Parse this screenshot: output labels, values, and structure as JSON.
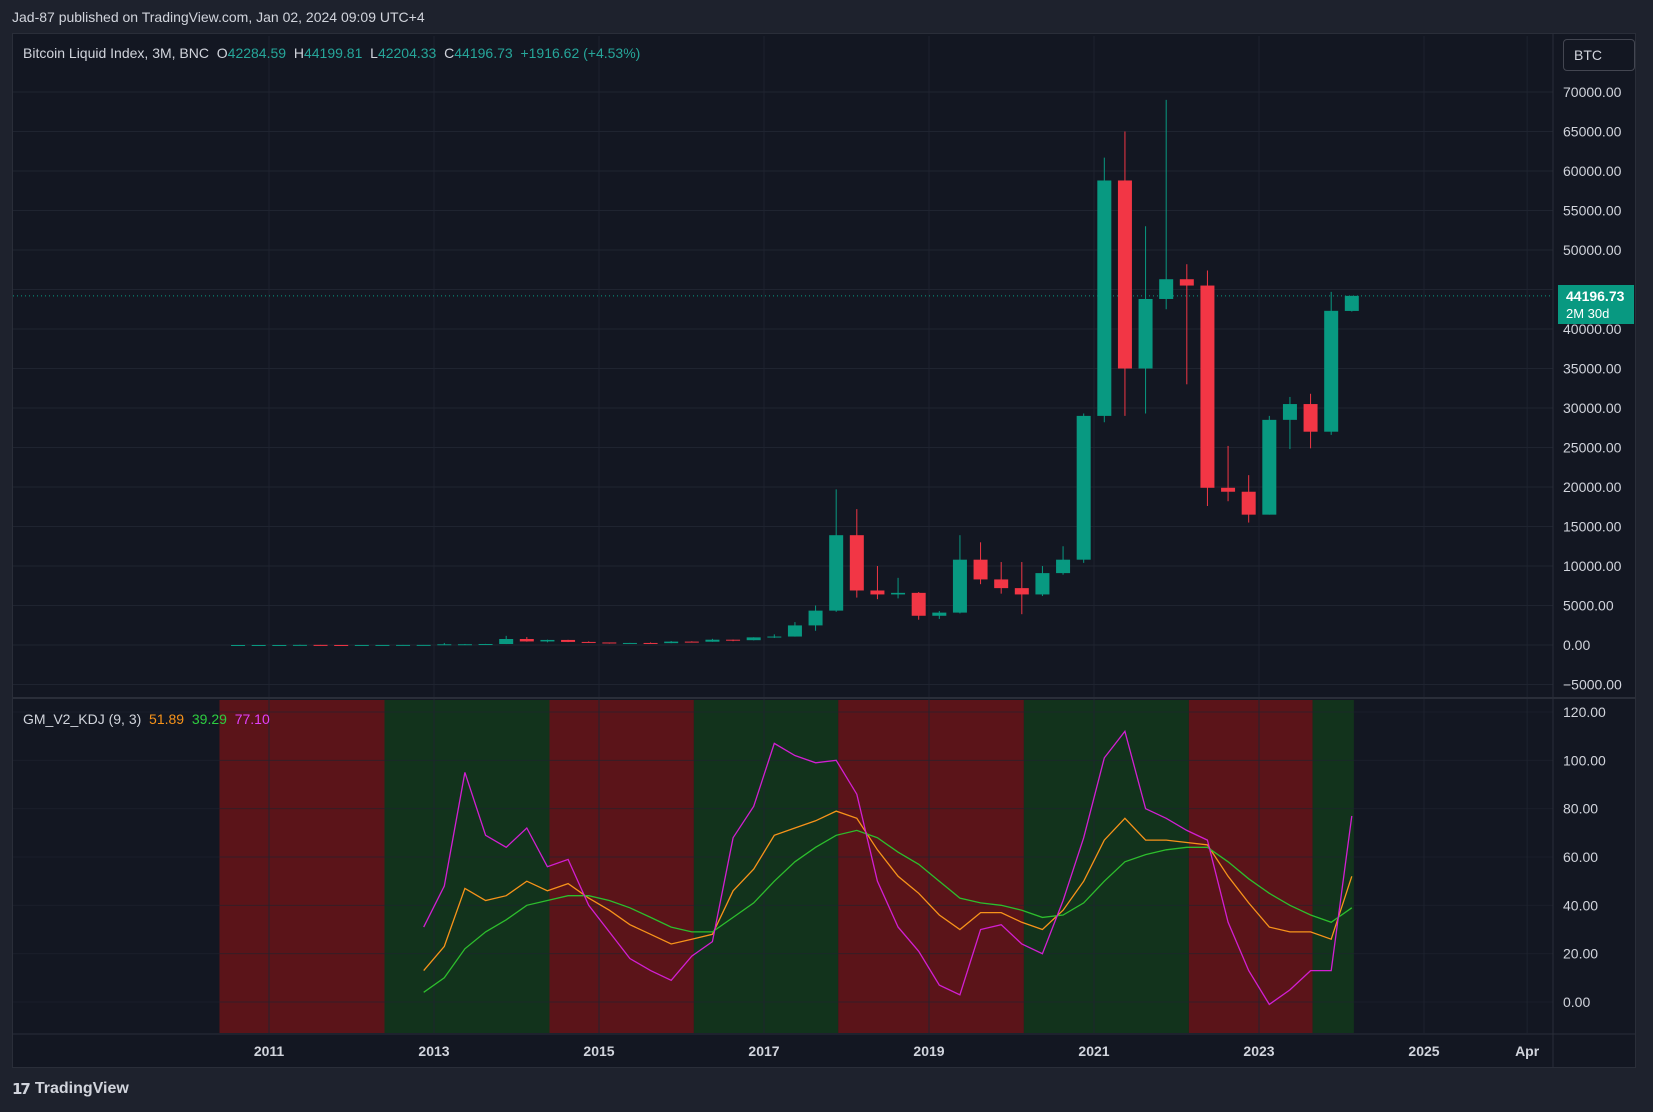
{
  "header": {
    "published": "Jad-87 published on TradingView.com, Jan 02, 2024 09:09 UTC+4"
  },
  "legend": {
    "title": "Bitcoin Liquid Index, 3M, BNC",
    "o_label": "O",
    "o": "42284.59",
    "h_label": "H",
    "h": "44199.81",
    "l_label": "L",
    "l": "42204.33",
    "c_label": "C",
    "c": "44196.73",
    "change": "+1916.62 (+4.53%)"
  },
  "symbol_box": {
    "label": "BTC"
  },
  "price_tag": {
    "price": "44196.73",
    "countdown": "2M 30d"
  },
  "kdj_legend": {
    "name": "GM_V2_KDJ (9, 3)",
    "k": "51.89",
    "d": "39.29",
    "j": "77.10"
  },
  "footer": {
    "brand": "TradingView",
    "logo": "tradingview-logo-icon"
  },
  "colors": {
    "up": "#089981",
    "down": "#f23645",
    "k": "#f7931a",
    "d": "#2dbe2d",
    "j": "#d21fd2",
    "zone_red": "#5b1419",
    "zone_green": "#12331c",
    "bg": "#131722",
    "grid": "#1f2430"
  },
  "chart_data": [
    {
      "type": "candlestick",
      "title": "Bitcoin Liquid Index, 3M, BNC",
      "ylim": [
        -6000,
        72000
      ],
      "y_ticks": [
        -5000,
        0,
        5000,
        10000,
        15000,
        20000,
        25000,
        30000,
        35000,
        40000,
        45000,
        50000,
        55000,
        60000,
        65000,
        70000
      ],
      "y_tick_labels": [
        "−5000.00",
        "0.00",
        "5000.00",
        "10000.00",
        "15000.00",
        "20000.00",
        "25000.00",
        "30000.00",
        "35000.00",
        "40000.00",
        "45000.00",
        "50000.00",
        "55000.00",
        "60000.00",
        "65000.00",
        "70000.00"
      ],
      "x_tick_labels": [
        "2011",
        "2013",
        "2015",
        "2017",
        "2019",
        "2021",
        "2023",
        "2025",
        "Apr"
      ],
      "x_tick_years": [
        2011,
        2013,
        2015,
        2017,
        2019,
        2021,
        2023,
        2025,
        2026.25
      ],
      "grid": true,
      "current_price": 44196.73,
      "candles": [
        {
          "t": 2010.5,
          "o": 0.1,
          "h": 0.4,
          "l": 0.05,
          "c": 0.3
        },
        {
          "t": 2010.75,
          "o": 0.3,
          "h": 0.5,
          "l": 0.2,
          "c": 0.3
        },
        {
          "t": 2011.0,
          "o": 0.3,
          "h": 1,
          "l": 0.3,
          "c": 0.8
        },
        {
          "t": 2011.25,
          "o": 0.8,
          "h": 32,
          "l": 0.7,
          "c": 16
        },
        {
          "t": 2011.5,
          "o": 16,
          "h": 17,
          "l": 4,
          "c": 5
        },
        {
          "t": 2011.75,
          "o": 5,
          "h": 6,
          "l": 2,
          "c": 4.7
        },
        {
          "t": 2012.0,
          "o": 4.7,
          "h": 7,
          "l": 4,
          "c": 5
        },
        {
          "t": 2012.25,
          "o": 5,
          "h": 7,
          "l": 4.5,
          "c": 6.7
        },
        {
          "t": 2012.5,
          "o": 6.7,
          "h": 15,
          "l": 6,
          "c": 12.4
        },
        {
          "t": 2012.75,
          "o": 12.4,
          "h": 14,
          "l": 9,
          "c": 13.5
        },
        {
          "t": 2013.0,
          "o": 13.5,
          "h": 260,
          "l": 13,
          "c": 93
        },
        {
          "t": 2013.25,
          "o": 93,
          "h": 130,
          "l": 65,
          "c": 97
        },
        {
          "t": 2013.5,
          "o": 97,
          "h": 140,
          "l": 95,
          "c": 125
        },
        {
          "t": 2013.75,
          "o": 125,
          "h": 1160,
          "l": 120,
          "c": 760
        },
        {
          "t": 2014.0,
          "o": 760,
          "h": 1000,
          "l": 420,
          "c": 450
        },
        {
          "t": 2014.25,
          "o": 450,
          "h": 680,
          "l": 340,
          "c": 640
        },
        {
          "t": 2014.5,
          "o": 640,
          "h": 660,
          "l": 370,
          "c": 390
        },
        {
          "t": 2014.75,
          "o": 390,
          "h": 460,
          "l": 300,
          "c": 320
        },
        {
          "t": 2015.0,
          "o": 320,
          "h": 320,
          "l": 170,
          "c": 245
        },
        {
          "t": 2015.25,
          "o": 245,
          "h": 270,
          "l": 215,
          "c": 260
        },
        {
          "t": 2015.5,
          "o": 260,
          "h": 320,
          "l": 200,
          "c": 236
        },
        {
          "t": 2015.75,
          "o": 236,
          "h": 500,
          "l": 230,
          "c": 430
        },
        {
          "t": 2016.0,
          "o": 430,
          "h": 470,
          "l": 350,
          "c": 416
        },
        {
          "t": 2016.25,
          "o": 416,
          "h": 780,
          "l": 410,
          "c": 670
        },
        {
          "t": 2016.5,
          "o": 670,
          "h": 690,
          "l": 480,
          "c": 610
        },
        {
          "t": 2016.75,
          "o": 610,
          "h": 980,
          "l": 590,
          "c": 965
        },
        {
          "t": 2017.0,
          "o": 965,
          "h": 1350,
          "l": 890,
          "c": 1070
        },
        {
          "t": 2017.25,
          "o": 1070,
          "h": 2900,
          "l": 1060,
          "c": 2480
        },
        {
          "t": 2017.5,
          "o": 2480,
          "h": 5000,
          "l": 1800,
          "c": 4350
        },
        {
          "t": 2017.75,
          "o": 4350,
          "h": 19700,
          "l": 4200,
          "c": 13900
        },
        {
          "t": 2018.0,
          "o": 13900,
          "h": 17200,
          "l": 6000,
          "c": 6900
        },
        {
          "t": 2018.25,
          "o": 6900,
          "h": 10000,
          "l": 5800,
          "c": 6400
        },
        {
          "t": 2018.5,
          "o": 6400,
          "h": 8500,
          "l": 5900,
          "c": 6600
        },
        {
          "t": 2018.75,
          "o": 6600,
          "h": 6700,
          "l": 3200,
          "c": 3700
        },
        {
          "t": 2019.0,
          "o": 3700,
          "h": 4300,
          "l": 3300,
          "c": 4100
        },
        {
          "t": 2019.25,
          "o": 4100,
          "h": 13900,
          "l": 4000,
          "c": 10800
        },
        {
          "t": 2019.5,
          "o": 10800,
          "h": 13000,
          "l": 7700,
          "c": 8300
        },
        {
          "t": 2019.75,
          "o": 8300,
          "h": 10500,
          "l": 6500,
          "c": 7200
        },
        {
          "t": 2020.0,
          "o": 7200,
          "h": 10500,
          "l": 3900,
          "c": 6400
        },
        {
          "t": 2020.25,
          "o": 6400,
          "h": 10000,
          "l": 6200,
          "c": 9100
        },
        {
          "t": 2020.5,
          "o": 9100,
          "h": 12500,
          "l": 8900,
          "c": 10800
        },
        {
          "t": 2020.75,
          "o": 10800,
          "h": 29300,
          "l": 10400,
          "c": 29000
        },
        {
          "t": 2021.0,
          "o": 29000,
          "h": 61700,
          "l": 28200,
          "c": 58800
        },
        {
          "t": 2021.25,
          "o": 58800,
          "h": 65000,
          "l": 29000,
          "c": 35000
        },
        {
          "t": 2021.5,
          "o": 35000,
          "h": 53000,
          "l": 29300,
          "c": 43800
        },
        {
          "t": 2021.75,
          "o": 43800,
          "h": 69000,
          "l": 42500,
          "c": 46300
        },
        {
          "t": 2022.0,
          "o": 46300,
          "h": 48200,
          "l": 33000,
          "c": 45500
        },
        {
          "t": 2022.25,
          "o": 45500,
          "h": 47400,
          "l": 17600,
          "c": 19900
        },
        {
          "t": 2022.5,
          "o": 19900,
          "h": 25200,
          "l": 18200,
          "c": 19400
        },
        {
          "t": 2022.75,
          "o": 19400,
          "h": 21500,
          "l": 15500,
          "c": 16500
        },
        {
          "t": 2023.0,
          "o": 16500,
          "h": 29000,
          "l": 16500,
          "c": 28500
        },
        {
          "t": 2023.25,
          "o": 28500,
          "h": 31400,
          "l": 24800,
          "c": 30500
        },
        {
          "t": 2023.5,
          "o": 30500,
          "h": 31800,
          "l": 24900,
          "c": 27000
        },
        {
          "t": 2023.75,
          "o": 27000,
          "h": 44700,
          "l": 26600,
          "c": 42300
        },
        {
          "t": 2024.0,
          "o": 42284.59,
          "h": 44199.81,
          "l": 42204.33,
          "c": 44196.73
        }
      ]
    },
    {
      "type": "line",
      "title": "GM_V2_KDJ (9, 3)",
      "ylim": [
        -13,
        125
      ],
      "y_ticks": [
        0,
        20,
        40,
        60,
        80,
        100,
        120
      ],
      "y_tick_labels": [
        "0.00",
        "20.00",
        "40.00",
        "60.00",
        "80.00",
        "100.00",
        "120.00"
      ],
      "x": [
        2012.75,
        2013.0,
        2013.25,
        2013.5,
        2013.75,
        2014.0,
        2014.25,
        2014.5,
        2014.75,
        2015.0,
        2015.25,
        2015.5,
        2015.75,
        2016.0,
        2016.25,
        2016.5,
        2016.75,
        2017.0,
        2017.25,
        2017.5,
        2017.75,
        2018.0,
        2018.25,
        2018.5,
        2018.75,
        2019.0,
        2019.25,
        2019.5,
        2019.75,
        2020.0,
        2020.25,
        2020.5,
        2020.75,
        2021.0,
        2021.25,
        2021.5,
        2021.75,
        2022.0,
        2022.25,
        2022.5,
        2022.75,
        2023.0,
        2023.25,
        2023.5,
        2023.75,
        2024.0
      ],
      "series": [
        {
          "name": "K",
          "values": [
            13,
            23,
            47,
            42,
            44,
            50,
            46,
            49,
            43,
            38,
            32,
            28,
            24,
            26,
            28,
            46,
            55,
            69,
            72,
            75,
            79,
            76,
            63,
            52,
            45,
            36,
            30,
            37,
            37,
            33,
            30,
            38,
            50,
            67,
            76,
            67,
            67,
            66,
            65,
            52,
            41,
            31,
            29,
            29,
            26,
            52
          ]
        },
        {
          "name": "D",
          "values": [
            4,
            10,
            22,
            29,
            34,
            40,
            42,
            44,
            44,
            42,
            39,
            35,
            31,
            29,
            29,
            35,
            41,
            50,
            58,
            64,
            69,
            71,
            68,
            62,
            57,
            50,
            43,
            41,
            40,
            38,
            35,
            36,
            41,
            50,
            58,
            61,
            63,
            64,
            64,
            58,
            51,
            45,
            40,
            36,
            33,
            39
          ]
        },
        {
          "name": "J",
          "values": [
            31,
            48,
            95,
            69,
            64,
            72,
            56,
            59,
            40,
            29,
            18,
            13,
            9,
            19,
            25,
            68,
            81,
            107,
            102,
            99,
            100,
            86,
            50,
            31,
            21,
            7,
            3,
            30,
            32,
            24,
            20,
            42,
            68,
            101,
            112,
            80,
            76,
            71,
            67,
            33,
            13,
            -1,
            5,
            13,
            13,
            77
          ]
        }
      ],
      "zones": [
        {
          "from": 2010.4,
          "to": 2012.4,
          "state": "red"
        },
        {
          "from": 2012.4,
          "to": 2014.4,
          "state": "green"
        },
        {
          "from": 2014.4,
          "to": 2016.15,
          "state": "red"
        },
        {
          "from": 2016.15,
          "to": 2017.9,
          "state": "green"
        },
        {
          "from": 2017.9,
          "to": 2020.15,
          "state": "red"
        },
        {
          "from": 2020.15,
          "to": 2022.15,
          "state": "green"
        },
        {
          "from": 2022.15,
          "to": 2023.65,
          "state": "red"
        },
        {
          "from": 2023.65,
          "to": 2024.15,
          "state": "green"
        }
      ]
    }
  ]
}
